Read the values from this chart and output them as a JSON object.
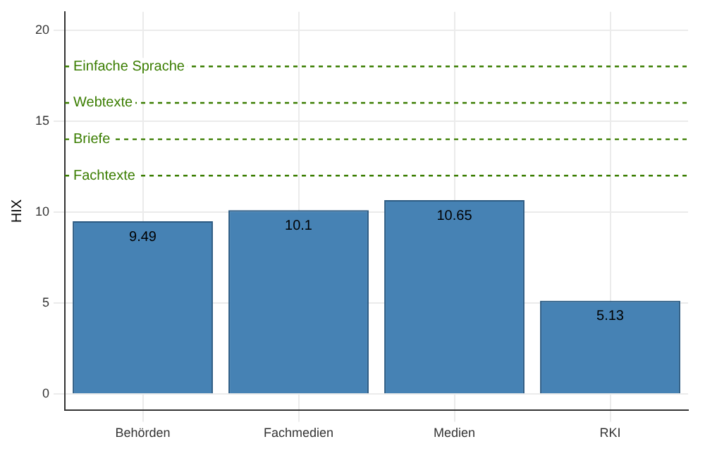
{
  "chart_data": {
    "type": "bar",
    "ylabel": "HIX",
    "categories": [
      "Behörden",
      "Fachmedien",
      "Medien",
      "RKI"
    ],
    "values": [
      9.49,
      10.1,
      10.65,
      5.13
    ],
    "color": "#4682b4",
    "ylim": [
      -0.9,
      21
    ],
    "yticks": [
      0,
      5,
      10,
      15,
      20
    ],
    "grid": true,
    "data_labels": true,
    "ref_lines": [
      {
        "axis": "y",
        "value": 18,
        "label": "Einfache Sprache",
        "color": "#3a7d00",
        "line_style": "dashed"
      },
      {
        "axis": "y",
        "value": 16,
        "label": "Webtexte",
        "color": "#3a7d00",
        "line_style": "dashed"
      },
      {
        "axis": "y",
        "value": 14,
        "label": "Briefe",
        "color": "#3a7d00",
        "line_style": "dashed"
      },
      {
        "axis": "y",
        "value": 12,
        "label": "Fachtexte",
        "color": "#3a7d00",
        "line_style": "dashed"
      }
    ]
  }
}
